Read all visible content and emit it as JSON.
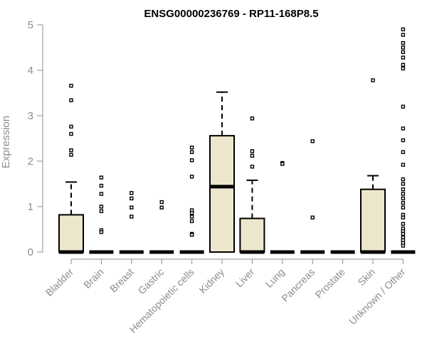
{
  "chart_data": {
    "type": "boxplot",
    "title": "ENSG00000236769 - RP11-168P8.5",
    "ylabel": "Expression",
    "xlabel": "",
    "ylim": [
      0,
      5
    ],
    "yticks": [
      0,
      1,
      2,
      3,
      4,
      5
    ],
    "grid": false,
    "box_color": "#ece6cc",
    "categories": [
      "Bladder",
      "Brain",
      "Breast",
      "Gastric",
      "Hematopoietic cells",
      "Kidney",
      "Liver",
      "Lung",
      "Pancreas",
      "Prostate",
      "Skin",
      "Unknown / Other"
    ],
    "boxes": [
      {
        "category": "Bladder",
        "q1": 0,
        "median": 0,
        "q3": 0.82,
        "whisker_low": 0,
        "whisker_high": 1.54,
        "outliers": [
          3.66,
          3.34,
          2.76,
          2.6,
          2.24,
          2.14
        ]
      },
      {
        "category": "Brain",
        "q1": 0,
        "median": 0,
        "q3": 0,
        "whisker_low": 0,
        "whisker_high": 0,
        "outliers": [
          1.64,
          1.46,
          1.28,
          1.0,
          0.9,
          0.48,
          0.44
        ]
      },
      {
        "category": "Breast",
        "q1": 0,
        "median": 0,
        "q3": 0,
        "whisker_low": 0,
        "whisker_high": 0,
        "outliers": [
          1.3,
          1.18,
          0.98,
          0.78
        ]
      },
      {
        "category": "Gastric",
        "q1": 0,
        "median": 0,
        "q3": 0,
        "whisker_low": 0,
        "whisker_high": 0,
        "outliers": [
          1.1,
          0.98
        ]
      },
      {
        "category": "Hematopoietic cells",
        "q1": 0,
        "median": 0,
        "q3": 0,
        "whisker_low": 0,
        "whisker_high": 0,
        "outliers": [
          2.3,
          2.2,
          2.02,
          1.66,
          0.92,
          0.86,
          0.78,
          0.68,
          0.4,
          0.38
        ]
      },
      {
        "category": "Kidney",
        "q1": 0,
        "median": 1.44,
        "q3": 2.56,
        "whisker_low": 0,
        "whisker_high": 3.52,
        "outliers": []
      },
      {
        "category": "Liver",
        "q1": 0,
        "median": 0,
        "q3": 0.74,
        "whisker_low": 0,
        "whisker_high": 1.58,
        "outliers": [
          2.94,
          2.22,
          2.12,
          1.88
        ]
      },
      {
        "category": "Lung",
        "q1": 0,
        "median": 0,
        "q3": 0,
        "whisker_low": 0,
        "whisker_high": 0,
        "outliers": [
          1.96,
          1.94
        ]
      },
      {
        "category": "Pancreas",
        "q1": 0,
        "median": 0,
        "q3": 0,
        "whisker_low": 0,
        "whisker_high": 0,
        "outliers": [
          2.44,
          0.76
        ]
      },
      {
        "category": "Prostate",
        "q1": 0,
        "median": 0,
        "q3": 0,
        "whisker_low": 0,
        "whisker_high": 0,
        "outliers": []
      },
      {
        "category": "Skin",
        "q1": 0,
        "median": 0,
        "q3": 1.38,
        "whisker_low": 0,
        "whisker_high": 1.68,
        "outliers": [
          3.78
        ]
      },
      {
        "category": "Unknown / Other",
        "q1": 0,
        "median": 0,
        "q3": 0,
        "whisker_low": 0,
        "whisker_high": 0,
        "outliers": [
          4.9,
          4.78,
          4.6,
          4.5,
          4.4,
          4.28,
          4.12,
          4.04,
          3.2,
          2.72,
          2.46,
          2.2,
          1.92,
          1.6,
          1.5,
          1.38,
          1.28,
          1.18,
          1.08,
          0.98,
          0.82,
          0.76,
          0.62,
          0.52,
          0.46,
          0.4,
          0.32,
          0.26,
          0.2,
          0.14
        ]
      }
    ]
  }
}
